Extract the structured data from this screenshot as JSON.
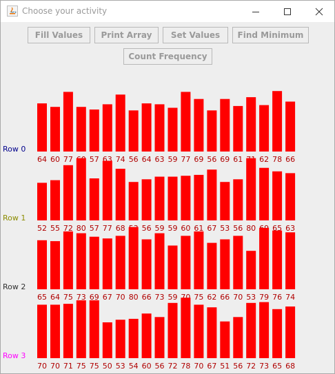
{
  "window": {
    "title": "Choose your activity"
  },
  "buttons": {
    "fill_values": "Fill Values",
    "print_array": "Print Array",
    "set_values": "Set Values",
    "find_minimum": "Find Minimum",
    "count_frequency": "Count Frequency"
  },
  "colors": {
    "bar": "#ff0000",
    "value_label": "#b00000",
    "row_label_0": "#00008b",
    "row_label_1": "#8b8b00",
    "row_label_2": "#303030",
    "row_label_3": "#ff00ff"
  },
  "chart_data": {
    "type": "bar",
    "rows": [
      {
        "label": "Row 0",
        "values": [
          64,
          60,
          77,
          60,
          57,
          63,
          74,
          56,
          64,
          63,
          59,
          77,
          69,
          56,
          69,
          61,
          71,
          62,
          78,
          66
        ]
      },
      {
        "label": "Row 1",
        "values": [
          52,
          55,
          72,
          80,
          57,
          77,
          68,
          53,
          56,
          59,
          59,
          60,
          61,
          67,
          53,
          56,
          80,
          69,
          65,
          63
        ]
      },
      {
        "label": "Row 2",
        "values": [
          65,
          64,
          75,
          73,
          69,
          67,
          70,
          80,
          66,
          73,
          59,
          70,
          75,
          62,
          66,
          70,
          53,
          79,
          76,
          74
        ]
      },
      {
        "label": "Row 3",
        "values": [
          70,
          70,
          71,
          75,
          75,
          50,
          53,
          54,
          60,
          56,
          72,
          78,
          70,
          67,
          51,
          56,
          72,
          73,
          65,
          68
        ]
      }
    ]
  }
}
